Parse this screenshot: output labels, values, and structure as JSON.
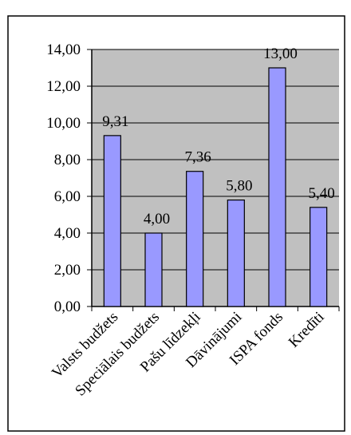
{
  "chart_data": {
    "type": "bar",
    "categories": [
      "Valsts budžets",
      "Speciālais budžets",
      "Pašu līdzekļi",
      "Dāvinājumi",
      "ISPA fonds",
      "Kredīti"
    ],
    "values": [
      9.31,
      4.0,
      7.36,
      5.8,
      13.0,
      5.4
    ],
    "value_labels": [
      "9,31",
      "4,00",
      "7,36",
      "5,80",
      "13,00",
      "5,40"
    ],
    "color": "#9999ff",
    "ylim": [
      0,
      14
    ],
    "yticks": [
      {
        "value": 0,
        "label": "0,00"
      },
      {
        "value": 2,
        "label": "2,00"
      },
      {
        "value": 4,
        "label": "4,00"
      },
      {
        "value": 6,
        "label": "6,00"
      },
      {
        "value": 8,
        "label": "8,00"
      },
      {
        "value": 10,
        "label": "10,00"
      },
      {
        "value": 12,
        "label": "12,00"
      },
      {
        "value": 14,
        "label": "14,00"
      }
    ],
    "grid": true
  }
}
